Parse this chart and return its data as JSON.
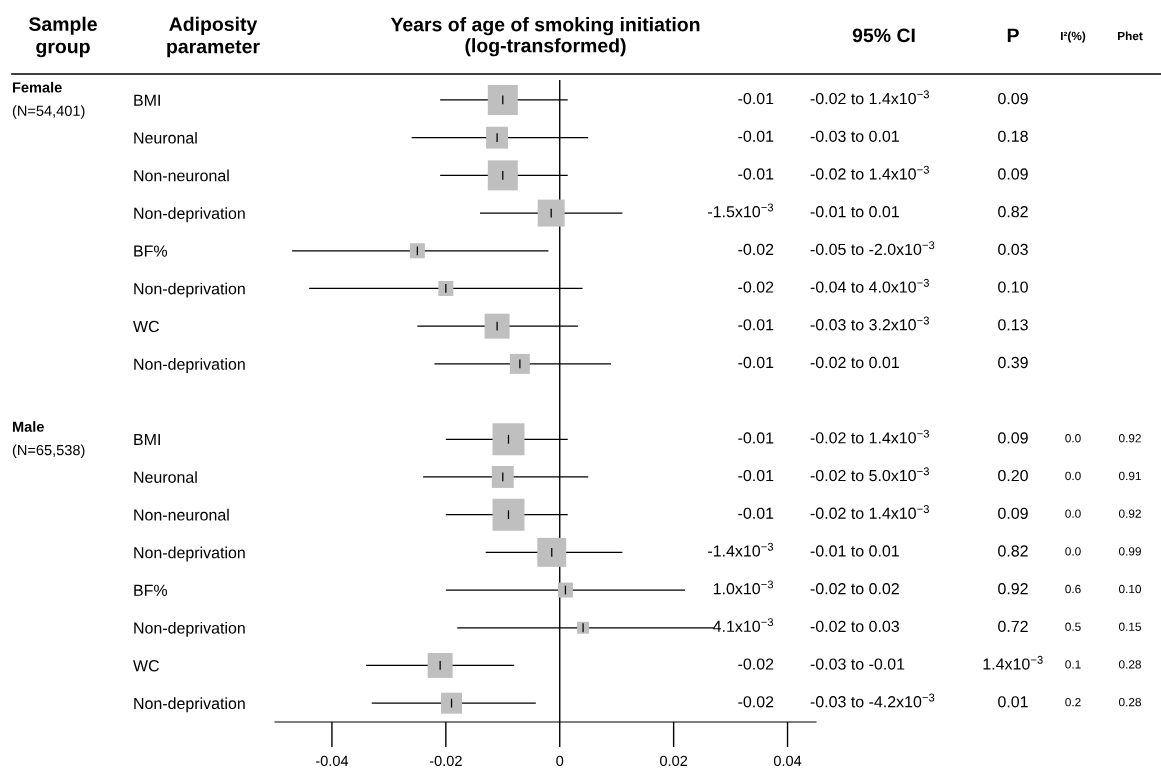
{
  "chart_data": [
    {
      "type": "bubble",
      "orientation": "horizontal",
      "title": "Years of age of smoking initiation\n(log-transformed)",
      "categories": [
        "BMI",
        "Neuronal",
        "Non-neuronal",
        "Non-deprivation",
        "BF%",
        "Non-deprivation",
        "WC",
        "Non-deprivation",
        null,
        "BMI",
        "Neuronal",
        "Non-neuronal",
        "Non-deprivation",
        "BF%",
        "Non-deprivation",
        "WC",
        "Non-deprivation"
      ],
      "values": [
        -0.01,
        -0.011,
        -0.01,
        -0.0015,
        -0.025,
        -0.02,
        -0.011,
        -0.007,
        null,
        -0.009,
        -0.01,
        -0.009,
        -0.0014,
        0.001,
        0.0041,
        -0.021,
        -0.019
      ],
      "errors": [
        [
          -0.021,
          0.0014
        ],
        [
          -0.026,
          0.005
        ],
        [
          -0.021,
          0.0014
        ],
        [
          -0.014,
          0.011
        ],
        [
          -0.047,
          -0.002
        ],
        [
          -0.044,
          0.004
        ],
        [
          -0.025,
          0.0032
        ],
        [
          -0.022,
          0.009
        ],
        null,
        [
          -0.02,
          0.0014
        ],
        [
          -0.024,
          0.005
        ],
        [
          -0.02,
          0.0014
        ],
        [
          -0.013,
          0.011
        ],
        [
          -0.02,
          0.022
        ],
        [
          -0.018,
          0.027
        ],
        [
          -0.034,
          -0.008
        ],
        [
          -0.033,
          -0.0042
        ]
      ],
      "sizes": [
        0.88,
        0.47,
        0.88,
        0.71,
        0.22,
        0.22,
        0.61,
        0.39,
        null,
        1,
        0.47,
        1,
        0.82,
        0.22,
        0.14,
        0.61,
        0.43
      ],
      "color": "#bfbfbf",
      "marker": "square",
      "xlim": [
        -0.05,
        0.045
      ],
      "xticks": [
        -0.04,
        -0.02,
        0,
        0.02,
        0.04
      ],
      "ref_lines": [
        {
          "axis": "x",
          "value": 0,
          "color": "#000000"
        }
      ],
      "grid": false,
      "annotations": [
        "Sample\ngroup",
        "Adiposity\nparameter",
        "Female",
        "(N=54,401)",
        "Male",
        "(N=65,538)"
      ]
    },
    {
      "type": "other",
      "categories": [
        null,
        "95% CI",
        "P",
        "I²(%)",
        "Phet"
      ],
      "cell_labels": [
        [
          "-0.01",
          "-0.02 to 1.4x10$^{−3}$",
          "0.09",
          null,
          null
        ],
        [
          "-0.01",
          "-0.03 to 0.01",
          "0.18",
          null,
          null
        ],
        [
          "-0.01",
          "-0.02 to 1.4x10$^{−3}$",
          "0.09",
          null,
          null
        ],
        [
          "-1.5x10$^{−3}$",
          "-0.01 to 0.01",
          "0.82",
          null,
          null
        ],
        [
          "-0.02",
          "-0.05 to -2.0x10$^{−3}$",
          "0.03",
          null,
          null
        ],
        [
          "-0.02",
          "-0.04 to 4.0x10$^{−3}$",
          "0.10",
          null,
          null
        ],
        [
          "-0.01",
          "-0.03 to 3.2x10$^{−3}$",
          "0.13",
          null,
          null
        ],
        [
          "-0.01",
          "-0.02 to 0.01",
          "0.39",
          null,
          null
        ],
        [
          null,
          null,
          null,
          null,
          null
        ],
        [
          "-0.01",
          "-0.02 to 1.4x10$^{−3}$",
          "0.09",
          "0.0",
          "0.92"
        ],
        [
          "-0.01",
          "-0.02 to 5.0x10$^{−3}$",
          "0.20",
          "0.0",
          "0.91"
        ],
        [
          "-0.01",
          "-0.02 to 1.4x10$^{−3}$",
          "0.09",
          "0.0",
          "0.92"
        ],
        [
          "-1.4x10$^{−3}$",
          "-0.01 to 0.01",
          "0.82",
          "0.0",
          "0.99"
        ],
        [
          "1.0x10$^{−3}$",
          "-0.02 to 0.02",
          "0.92",
          "0.6",
          "0.10"
        ],
        [
          "4.1x10$^{−3}$",
          "-0.02 to 0.03",
          "0.72",
          "0.5",
          "0.15"
        ],
        [
          "-0.02",
          "-0.03 to -0.01",
          "1.4x10$^{−3}$",
          "0.1",
          "0.28"
        ],
        [
          "-0.02",
          "-0.03 to -4.2x10$^{−3}$",
          "0.01",
          "0.2",
          "0.28"
        ]
      ]
    }
  ]
}
